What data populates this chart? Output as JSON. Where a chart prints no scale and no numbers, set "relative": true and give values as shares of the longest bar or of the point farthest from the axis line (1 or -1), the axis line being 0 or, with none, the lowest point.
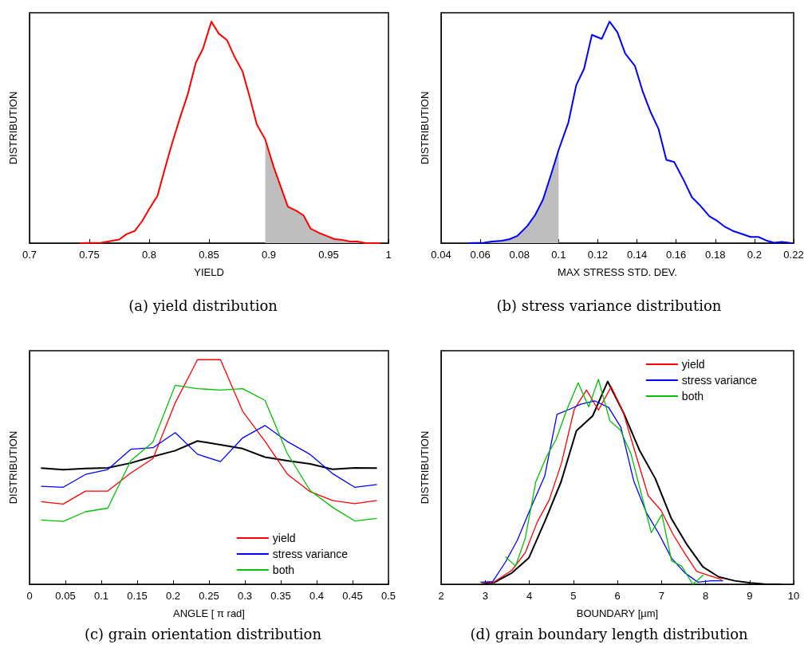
{
  "chart_data": [
    {
      "type": "line",
      "title": "(a) yield distribution",
      "xlabel": "YIELD",
      "ylabel": "DISTRIBUTION",
      "relative": true,
      "xlim": [
        0.7,
        1
      ],
      "xticks": [
        0.7,
        0.75,
        0.8,
        0.85,
        0.9,
        0.95,
        1
      ],
      "legend": false,
      "grid": false,
      "series": [
        {
          "type": "area",
          "color": "#bebebe",
          "x": [
            0.897,
            0.904,
            0.91,
            0.916,
            0.923,
            0.929,
            0.935,
            0.942,
            0.949,
            0.955,
            0.962,
            0.968,
            0.974,
            0.981,
            0.993
          ],
          "values": [
            0.469,
            0.345,
            0.254,
            0.164,
            0.146,
            0.125,
            0.065,
            0.046,
            0.031,
            0.018,
            0.014,
            0.007,
            0.007,
            0,
            0
          ]
        },
        {
          "color": "#ff0000",
          "x": [
            0.742,
            0.76,
            0.775,
            0.781,
            0.788,
            0.794,
            0.8,
            0.807,
            0.813,
            0.819,
            0.826,
            0.832,
            0.839,
            0.845,
            0.852,
            0.858,
            0.865,
            0.871,
            0.878,
            0.884,
            0.89,
            0.897,
            0.904,
            0.91,
            0.916,
            0.923,
            0.929,
            0.935,
            0.942,
            0.949,
            0.955,
            0.962,
            0.968,
            0.974,
            0.981,
            0.993
          ],
          "values": [
            0,
            0.002,
            0.016,
            0.04,
            0.055,
            0.098,
            0.154,
            0.214,
            0.333,
            0.447,
            0.57,
            0.667,
            0.814,
            0.878,
            1,
            0.947,
            0.917,
            0.845,
            0.776,
            0.66,
            0.535,
            0.469,
            0.345,
            0.254,
            0.164,
            0.146,
            0.125,
            0.065,
            0.046,
            0.031,
            0.018,
            0.014,
            0.007,
            0.007,
            0,
            0
          ]
        }
      ]
    },
    {
      "type": "line",
      "title": "(b) stress variance distribution",
      "xlabel": "MAX STRESS STD. DEV.",
      "ylabel": "DISTRIBUTION",
      "relative": true,
      "xlim": [
        0.04,
        0.22
      ],
      "xticks": [
        0.04,
        0.06,
        0.08,
        0.1,
        0.12,
        0.14,
        0.16,
        0.18,
        0.2,
        0.22
      ],
      "legend": false,
      "grid": false,
      "series": [
        {
          "type": "area",
          "color": "#bebebe",
          "x": [
            0.054,
            0.062,
            0.066,
            0.071,
            0.075,
            0.079,
            0.084,
            0.088,
            0.092,
            0.096,
            0.1
          ],
          "values": [
            0,
            0.002,
            0.007,
            0.011,
            0.018,
            0.033,
            0.077,
            0.127,
            0.196,
            0.306,
            0.42
          ]
        },
        {
          "color": "#0000ff",
          "x": [
            0.054,
            0.062,
            0.066,
            0.071,
            0.075,
            0.079,
            0.084,
            0.088,
            0.092,
            0.096,
            0.1,
            0.105,
            0.109,
            0.113,
            0.117,
            0.122,
            0.126,
            0.13,
            0.134,
            0.139,
            0.143,
            0.147,
            0.151,
            0.155,
            0.159,
            0.164,
            0.168,
            0.172,
            0.177,
            0.181,
            0.185,
            0.189,
            0.193,
            0.198,
            0.202,
            0.206,
            0.21,
            0.214,
            0.219
          ],
          "values": [
            0,
            0.002,
            0.007,
            0.011,
            0.018,
            0.033,
            0.077,
            0.127,
            0.196,
            0.306,
            0.42,
            0.545,
            0.713,
            0.787,
            0.94,
            0.922,
            1,
            0.952,
            0.856,
            0.799,
            0.683,
            0.591,
            0.516,
            0.376,
            0.366,
            0.282,
            0.208,
            0.172,
            0.121,
            0.1,
            0.073,
            0.055,
            0.043,
            0.028,
            0.028,
            0.012,
            0.002,
            0.005,
            0
          ]
        }
      ]
    },
    {
      "type": "line",
      "title": "(c) grain orientation distribution",
      "xlabel": "ANGLE [ π rad]",
      "ylabel": "DISTRIBUTION",
      "relative": true,
      "xlim": [
        0,
        0.5
      ],
      "xticks": [
        0,
        0.05,
        0.1,
        0.15,
        0.2,
        0.25,
        0.3,
        0.35,
        0.4,
        0.45,
        0.5
      ],
      "legend": "bottom right",
      "grid": false,
      "x": [
        0.016,
        0.047,
        0.078,
        0.109,
        0.141,
        0.172,
        0.203,
        0.234,
        0.266,
        0.297,
        0.328,
        0.359,
        0.391,
        0.422,
        0.453,
        0.484
      ],
      "series": [
        {
          "name": "yield",
          "color": "#ff0000",
          "values": [
            0.368,
            0.357,
            0.415,
            0.415,
            0.495,
            0.56,
            0.808,
            1,
            1,
            0.77,
            0.637,
            0.491,
            0.412,
            0.373,
            0.359,
            0.373
          ]
        },
        {
          "name": "stress variance",
          "color": "#0000ff",
          "values": [
            0.436,
            0.432,
            0.489,
            0.511,
            0.601,
            0.608,
            0.675,
            0.579,
            0.546,
            0.652,
            0.707,
            0.636,
            0.578,
            0.493,
            0.432,
            0.444
          ]
        },
        {
          "name": "both",
          "color": "#00c000",
          "values": [
            0.286,
            0.28,
            0.323,
            0.339,
            0.55,
            0.634,
            0.886,
            0.871,
            0.865,
            0.871,
            0.819,
            0.583,
            0.417,
            0.343,
            0.282,
            0.293
          ]
        },
        {
          "color": "#000000",
          "values": [
            0.517,
            0.51,
            0.516,
            0.518,
            0.54,
            0.569,
            0.595,
            0.638,
            0.621,
            0.604,
            0.566,
            0.55,
            0.536,
            0.512,
            0.518,
            0.517
          ]
        }
      ]
    },
    {
      "type": "line",
      "title": "(d) grain boundary length distribution",
      "xlabel": "BOUNDARY [µm]",
      "ylabel": "DISTRIBUTION",
      "relative": true,
      "xlim": [
        2,
        10
      ],
      "xticks": [
        2,
        3,
        4,
        5,
        6,
        7,
        8,
        9,
        10
      ],
      "legend": "top right",
      "grid": false,
      "series": [
        {
          "name": "yield",
          "color": "#ff0000",
          "x": [
            2.92,
            3.19,
            3.61,
            3.91,
            4.18,
            4.45,
            4.73,
            5.02,
            5.3,
            5.57,
            5.86,
            6.13,
            6.4,
            6.7,
            6.99,
            7.26,
            7.53,
            7.8,
            8.07,
            8.37
          ],
          "values": [
            0.007,
            0.01,
            0.069,
            0.154,
            0.303,
            0.41,
            0.59,
            0.853,
            0.948,
            0.85,
            0.964,
            0.842,
            0.647,
            0.432,
            0.361,
            0.245,
            0.15,
            0.063,
            0.043,
            0.023
          ]
        },
        {
          "name": "stress variance",
          "color": "#0000ff",
          "x": [
            2.89,
            3.17,
            3.46,
            3.73,
            4,
            4.35,
            4.63,
            4.9,
            5.17,
            5.49,
            5.8,
            6.08,
            6.37,
            6.66,
            6.93,
            7.23,
            7.53,
            7.83,
            8.13,
            8.4
          ],
          "values": [
            0.01,
            0.013,
            0.108,
            0.215,
            0.355,
            0.527,
            0.829,
            0.853,
            0.879,
            0.895,
            0.863,
            0.766,
            0.505,
            0.349,
            0.251,
            0.127,
            0.056,
            0.01,
            0.017,
            0.017
          ]
        },
        {
          "name": "both",
          "color": "#00c000",
          "x": [
            3.46,
            3.69,
            3.91,
            4.15,
            4.39,
            4.61,
            4.85,
            5.11,
            5.35,
            5.57,
            5.83,
            6.07,
            6.31,
            6.55,
            6.77,
            7.01,
            7.23,
            7.46,
            7.71,
            7.95
          ],
          "values": [
            0.134,
            0.089,
            0.225,
            0.501,
            0.622,
            0.707,
            0.85,
            0.983,
            0.866,
            1,
            0.798,
            0.753,
            0.636,
            0.435,
            0.252,
            0.341,
            0.114,
            0.088,
            0,
            0.045
          ]
        },
        {
          "color": "#000000",
          "x": [
            2.92,
            3.22,
            3.61,
            3.99,
            4.36,
            4.72,
            5.07,
            5.44,
            5.78,
            6.14,
            6.5,
            6.86,
            7.22,
            7.58,
            7.94,
            8.3,
            8.66,
            9.02,
            9.38,
            9.72
          ],
          "values": [
            0,
            0.01,
            0.056,
            0.128,
            0.31,
            0.499,
            0.749,
            0.822,
            0.99,
            0.837,
            0.655,
            0.516,
            0.323,
            0.193,
            0.085,
            0.036,
            0.017,
            0.007,
            0,
            0
          ]
        }
      ]
    }
  ]
}
